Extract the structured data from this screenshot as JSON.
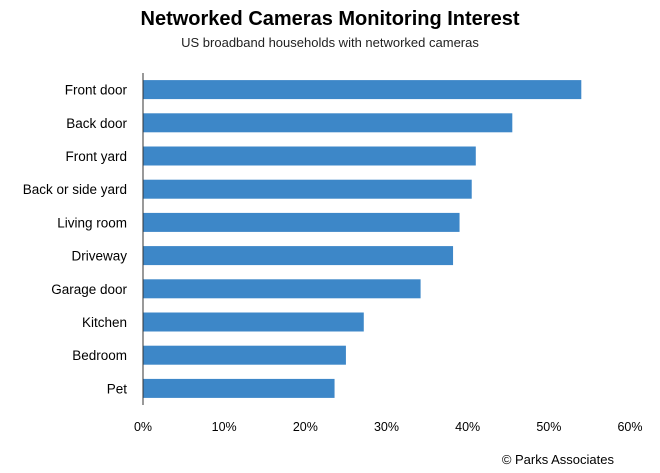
{
  "chart_data": {
    "type": "bar",
    "orientation": "horizontal",
    "title": "Networked Cameras Monitoring Interest",
    "subtitle": "US broadband households with networked cameras",
    "categories": [
      "Front door",
      "Back door",
      "Front yard",
      "Back or side yard",
      "Living room",
      "Driveway",
      "Garage door",
      "Kitchen",
      "Bedroom",
      "Pet"
    ],
    "values": [
      54,
      45.5,
      41,
      40.5,
      39,
      38.2,
      34.2,
      27.2,
      25,
      23.6
    ],
    "xlim": [
      0,
      60
    ],
    "xticks": [
      "0%",
      "10%",
      "20%",
      "30%",
      "40%",
      "50%",
      "60%"
    ],
    "xlabel": "",
    "ylabel": "",
    "grid": false,
    "bar_color": "#3d87c8"
  },
  "credit": "© Parks Associates"
}
